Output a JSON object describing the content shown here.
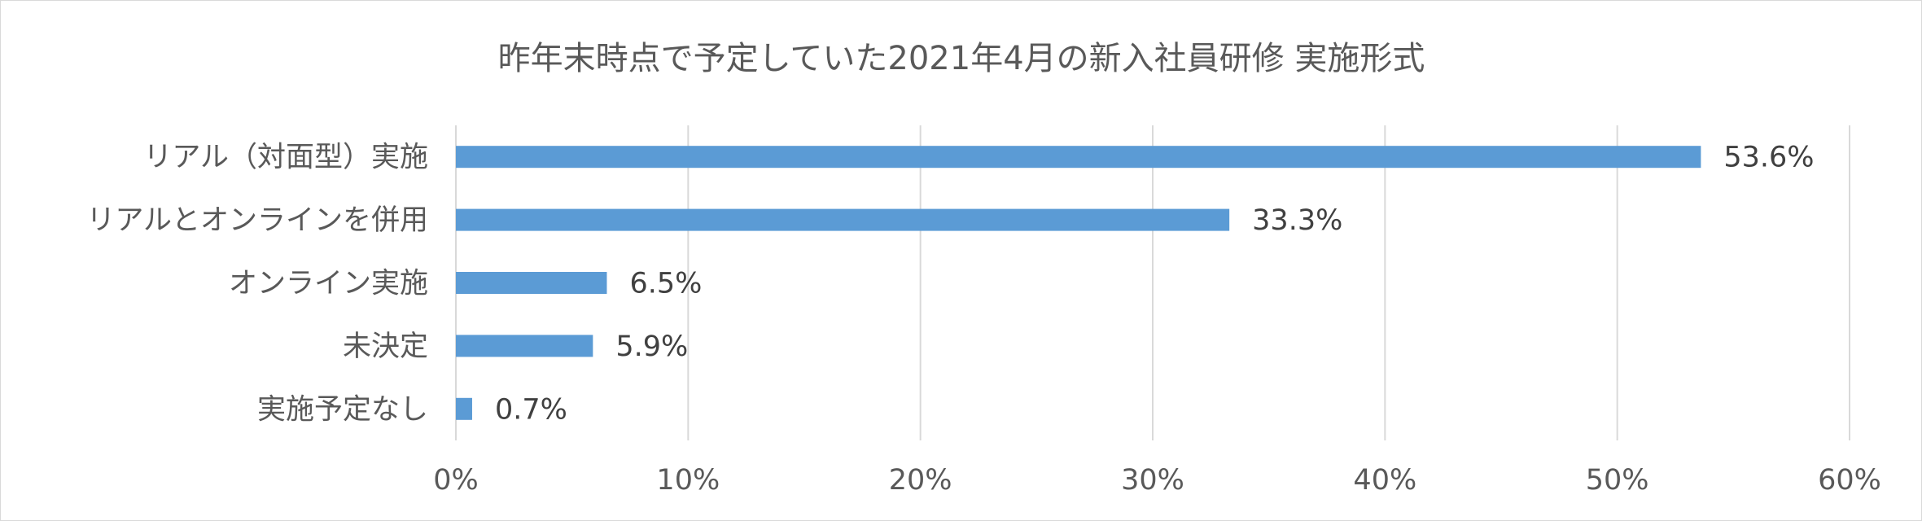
{
  "chart_data": {
    "type": "bar",
    "orientation": "horizontal",
    "title": "昨年末時点で予定していた2021年4月の新入社員研修 実施形式",
    "categories": [
      "リアル（対面型）実施",
      "リアルとオンラインを併用",
      "オンライン実施",
      "未決定",
      "実施予定なし"
    ],
    "values": [
      53.6,
      33.3,
      6.5,
      5.9,
      0.7
    ],
    "data_labels": [
      "53.6%",
      "33.3%",
      "6.5%",
      "5.9%",
      "0.7%"
    ],
    "xlim": [
      0,
      60
    ],
    "x_ticks": [
      0,
      10,
      20,
      30,
      40,
      50,
      60
    ],
    "x_tick_labels": [
      "0%",
      "10%",
      "20%",
      "30%",
      "40%",
      "50%",
      "60%"
    ],
    "xlabel": "",
    "ylabel": "",
    "grid": true,
    "legend": "none",
    "colors": {
      "bar": "#5b9bd5",
      "grid": "#d9d9d9",
      "text": "#595959",
      "border": "#d9d9d9"
    }
  }
}
